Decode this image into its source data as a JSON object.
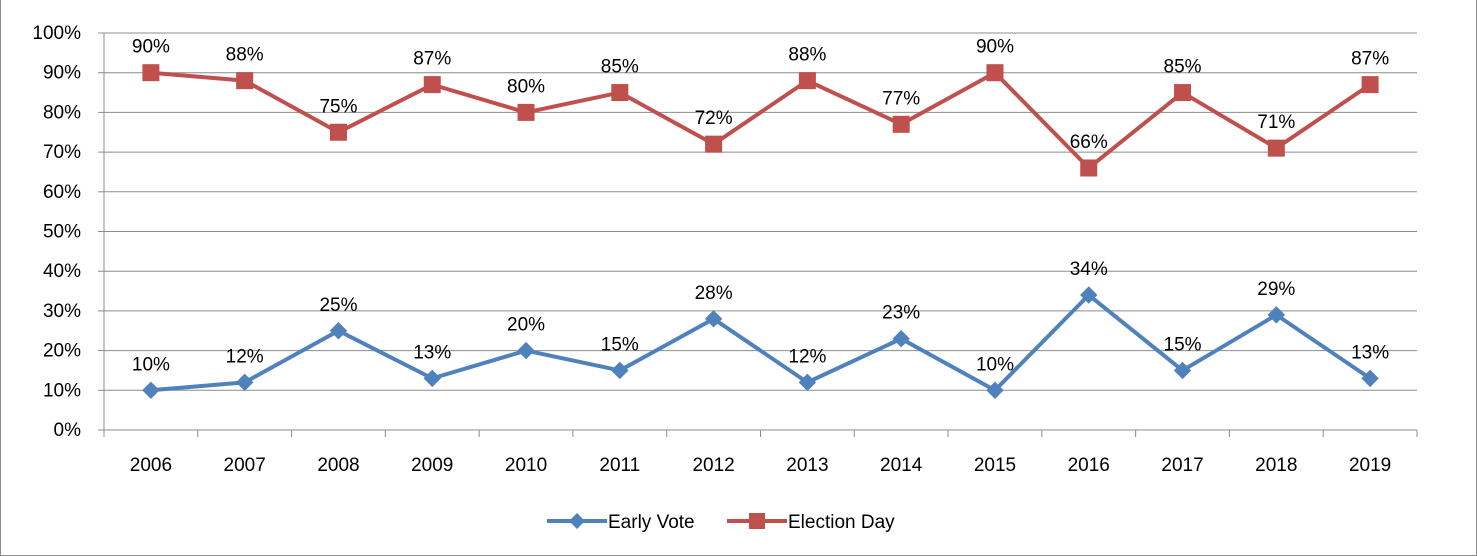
{
  "chart_data": {
    "type": "line",
    "title": "",
    "xlabel": "",
    "ylabel": "",
    "categories": [
      "2006",
      "2007",
      "2008",
      "2009",
      "2010",
      "2011",
      "2012",
      "2013",
      "2014",
      "2015",
      "2016",
      "2017",
      "2018",
      "2019"
    ],
    "ylim": [
      0,
      100
    ],
    "yticks": [
      "0%",
      "10%",
      "20%",
      "30%",
      "40%",
      "50%",
      "60%",
      "70%",
      "80%",
      "90%",
      "100%"
    ],
    "grid": true,
    "legend_position": "bottom",
    "series": [
      {
        "name": "Early Vote",
        "color": "#4f81bd",
        "marker": "diamond",
        "values": [
          10,
          12,
          25,
          13,
          20,
          15,
          28,
          12,
          23,
          10,
          34,
          15,
          29,
          13
        ],
        "labels": [
          "10%",
          "12%",
          "25%",
          "13%",
          "20%",
          "15%",
          "28%",
          "12%",
          "23%",
          "10%",
          "34%",
          "15%",
          "29%",
          "13%"
        ]
      },
      {
        "name": "Election Day",
        "color": "#c0504d",
        "marker": "square",
        "values": [
          90,
          88,
          75,
          87,
          80,
          85,
          72,
          88,
          77,
          90,
          66,
          85,
          71,
          87
        ],
        "labels": [
          "90%",
          "88%",
          "75%",
          "87%",
          "80%",
          "85%",
          "72%",
          "88%",
          "77%",
          "90%",
          "66%",
          "85%",
          "71%",
          "87%"
        ]
      }
    ]
  }
}
